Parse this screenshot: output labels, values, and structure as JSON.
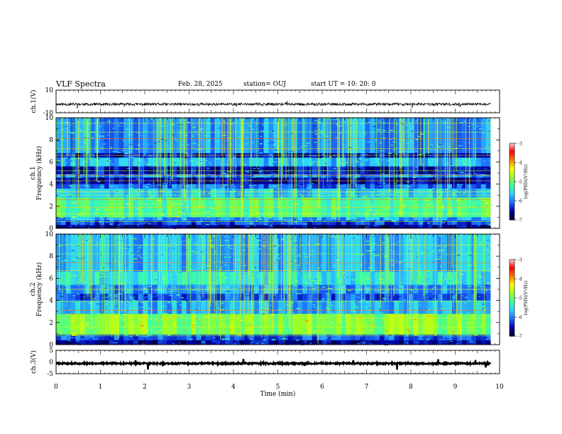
{
  "header": {
    "title": "VLF Spectra",
    "date": "Feb. 28, 2025",
    "station": "station= OUJ",
    "start_ut": "start  UT  =  10: 20: 0"
  },
  "colors": {
    "background": "#ffffff",
    "axes": "#000000",
    "colormap": [
      "#000033",
      "#0000aa",
      "#1e6eff",
      "#2fd3ff",
      "#3cffa0",
      "#9cff22",
      "#ffff00",
      "#ff7a00",
      "#ff0000",
      "#ffe0e0"
    ]
  },
  "chart_data": [
    {
      "type": "line",
      "name": "ch1-waveform",
      "ylabel": "ch.1(V)",
      "xlim": [
        0,
        10
      ],
      "ylim": [
        -10,
        10
      ],
      "ytick_labels": [
        "10",
        "-10"
      ],
      "data_end_min": 9.8,
      "level": -2.5
    },
    {
      "type": "heatmap",
      "name": "ch1-spectrogram",
      "ylabel": "Frequency (kHz)",
      "channel_label": "ch.1",
      "xlim": [
        0,
        10
      ],
      "ylim": [
        0,
        10
      ],
      "ytick_labels": [
        "0",
        "2",
        "4",
        "6",
        "8",
        "10"
      ],
      "colorbar": {
        "label": "log(PSD)(V²/Hz)",
        "range": [
          -7,
          -3
        ],
        "tick_labels": [
          "-3",
          "-4",
          "-5",
          "-6",
          "-7"
        ]
      },
      "bands_khz": [
        {
          "f0": 0.0,
          "f1": 0.3,
          "level": 0.08
        },
        {
          "f0": 0.3,
          "f1": 0.7,
          "level": 0.18
        },
        {
          "f0": 0.7,
          "f1": 1.0,
          "level": 0.28
        },
        {
          "f0": 1.0,
          "f1": 2.8,
          "level": 0.46
        },
        {
          "f0": 2.8,
          "f1": 3.6,
          "level": 0.33
        },
        {
          "f0": 3.6,
          "f1": 4.0,
          "level": 0.22
        },
        {
          "f0": 4.0,
          "f1": 4.6,
          "level": 0.1
        },
        {
          "f0": 4.6,
          "f1": 4.9,
          "level": 0.26
        },
        {
          "f0": 4.9,
          "f1": 5.6,
          "level": 0.12
        },
        {
          "f0": 5.6,
          "f1": 6.4,
          "level": 0.3
        },
        {
          "f0": 6.4,
          "f1": 6.8,
          "level": 0.12
        },
        {
          "f0": 6.8,
          "f1": 10.0,
          "level": 0.26
        }
      ],
      "tones_khz": [
        0.6,
        1.3,
        1.9,
        2.6,
        3.0,
        3.3,
        4.3,
        4.8,
        5.2,
        6.6,
        7.2,
        8.1,
        8.7,
        9.5
      ],
      "spike_rate": 0.55
    },
    {
      "type": "heatmap",
      "name": "ch2-spectrogram",
      "ylabel": "Frequency (kHz)",
      "channel_label": "ch.2",
      "xlim": [
        0,
        10
      ],
      "ylim": [
        0,
        10
      ],
      "ytick_labels": [
        "0",
        "2",
        "4",
        "6",
        "8",
        "10"
      ],
      "colorbar": {
        "label": "log(PSD)(V²/Hz)",
        "range": [
          -7,
          -3
        ],
        "tick_labels": [
          "-3",
          "-4",
          "-5",
          "-6",
          "-7"
        ]
      },
      "bands_khz": [
        {
          "f0": 0.0,
          "f1": 0.4,
          "level": 0.1
        },
        {
          "f0": 0.4,
          "f1": 0.9,
          "level": 0.2
        },
        {
          "f0": 0.9,
          "f1": 2.8,
          "level": 0.52
        },
        {
          "f0": 2.8,
          "f1": 4.0,
          "level": 0.3
        },
        {
          "f0": 4.0,
          "f1": 4.6,
          "level": 0.2
        },
        {
          "f0": 4.6,
          "f1": 5.4,
          "level": 0.27
        },
        {
          "f0": 5.4,
          "f1": 6.6,
          "level": 0.37
        },
        {
          "f0": 6.6,
          "f1": 10.0,
          "level": 0.3
        }
      ],
      "tones_khz": [
        0.8,
        1.6,
        2.4,
        3.1,
        3.9,
        5.0,
        6.7,
        7.4,
        8.2,
        9.0
      ],
      "spike_rate": 0.5
    },
    {
      "type": "line",
      "name": "ch3-waveform",
      "ylabel": "ch.3(V)",
      "xlabel": "Time (min)",
      "xlim": [
        0,
        10
      ],
      "ylim": [
        -5,
        5
      ],
      "ytick_labels": [
        "5",
        "0",
        "-5"
      ],
      "xtick_labels": [
        "0",
        "1",
        "2",
        "3",
        "4",
        "5",
        "6",
        "7",
        "8",
        "9",
        "10"
      ],
      "data_end_min": 9.8,
      "level": -0.6
    }
  ]
}
